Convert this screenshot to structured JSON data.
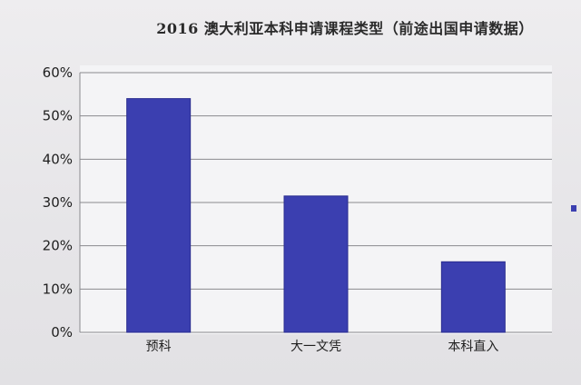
{
  "chart_data": {
    "type": "bar",
    "title": "2016 澳大利亚本科申请课程类型（前途出国申请数据）",
    "categories": [
      "预科",
      "大一文凭",
      "本科直入"
    ],
    "values": [
      54,
      31.5,
      16.3
    ],
    "ylim": [
      0,
      60
    ],
    "yticks": [
      "0%",
      "10%",
      "20%",
      "30%",
      "40%",
      "50%",
      "60%"
    ],
    "ytick_values": [
      0,
      10,
      20,
      30,
      40,
      50,
      60
    ],
    "xlabel": "",
    "ylabel": "",
    "grid": true,
    "legend": "right",
    "colors": {
      "bar": "#3b3fb0",
      "bar_edge": "#2a2d8f",
      "grid": "#8a8a8e",
      "plot_bg": "#f4f4f6"
    }
  }
}
